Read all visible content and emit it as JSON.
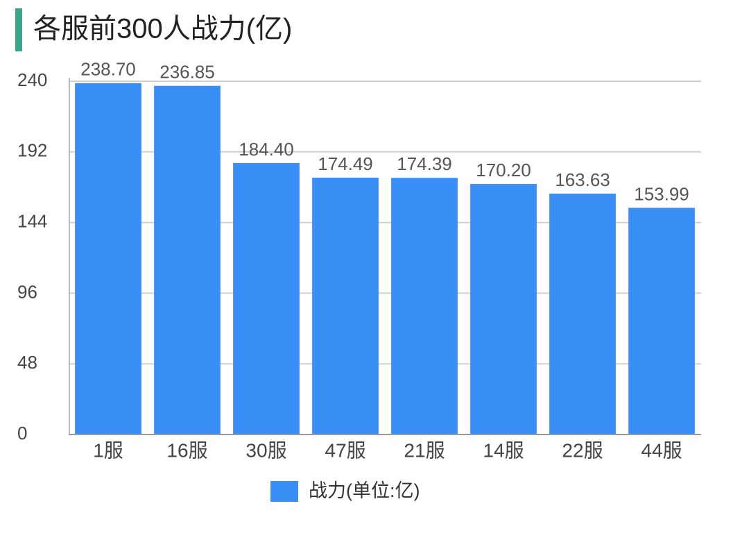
{
  "chart_data": {
    "type": "bar",
    "title": "各服前300人战力(亿)",
    "categories": [
      "1服",
      "16服",
      "30服",
      "47服",
      "21服",
      "14服",
      "22服",
      "44服"
    ],
    "series": [
      {
        "name": "战力(单位:亿)",
        "color": "#3a8ff7",
        "values": [
          238.7,
          236.85,
          184.4,
          174.49,
          174.39,
          170.2,
          163.63,
          153.99
        ],
        "value_labels": [
          "238.70",
          "236.85",
          "184.40",
          "174.49",
          "174.39",
          "170.20",
          "163.63",
          "153.99"
        ]
      }
    ],
    "ylim": [
      0,
      240
    ],
    "yticks": [
      0,
      48,
      96,
      144,
      192,
      240
    ],
    "grid": true,
    "legend": "bottom"
  }
}
